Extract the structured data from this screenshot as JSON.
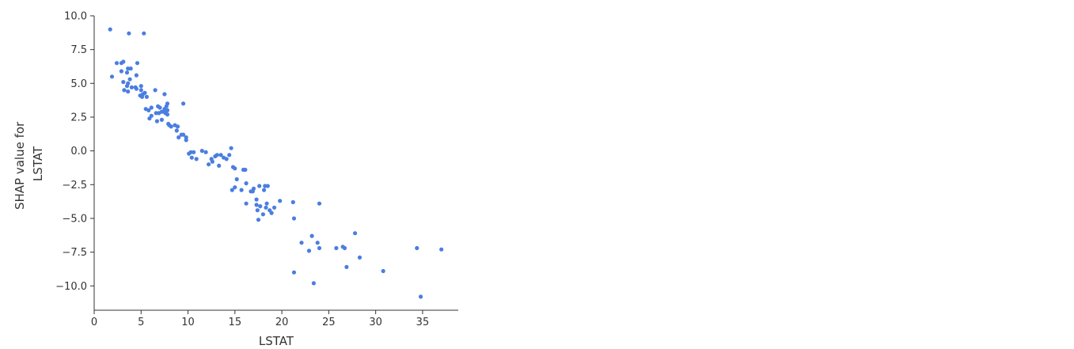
{
  "chart_data": {
    "type": "scatter",
    "title": "",
    "xlabel": "LSTAT",
    "ylabel": [
      "SHAP value for",
      "LSTAT"
    ],
    "xlim": [
      0,
      38.8
    ],
    "ylim": [
      -11.8,
      10.0
    ],
    "x_ticks": [
      0,
      5,
      10,
      15,
      20,
      25,
      30,
      35
    ],
    "x_tick_labels": [
      "0",
      "5",
      "10",
      "15",
      "20",
      "25",
      "30",
      "35"
    ],
    "y_ticks": [
      10.0,
      7.5,
      5.0,
      2.5,
      0.0,
      -2.5,
      -5.0,
      -7.5,
      -10.0
    ],
    "y_tick_labels": [
      "10.0",
      "7.5",
      "5.0",
      "2.5",
      "0.0",
      "−2.5",
      "−5.0",
      "−7.5",
      "−10.0"
    ],
    "grid": false,
    "legend": "none",
    "point_color": "#4a7ee0",
    "points": [
      [
        1.7,
        9.0
      ],
      [
        3.7,
        8.7
      ],
      [
        5.3,
        8.7
      ],
      [
        1.9,
        5.5
      ],
      [
        2.4,
        6.5
      ],
      [
        2.9,
        6.5
      ],
      [
        3.1,
        6.6
      ],
      [
        4.6,
        6.5
      ],
      [
        2.9,
        5.9
      ],
      [
        3.6,
        6.1
      ],
      [
        3.9,
        6.1
      ],
      [
        3.5,
        5.8
      ],
      [
        3.1,
        5.1
      ],
      [
        3.6,
        5.0
      ],
      [
        3.8,
        5.3
      ],
      [
        4.0,
        4.7
      ],
      [
        3.5,
        4.8
      ],
      [
        3.6,
        4.4
      ],
      [
        3.2,
        4.5
      ],
      [
        4.4,
        4.7
      ],
      [
        4.5,
        4.6
      ],
      [
        4.5,
        5.6
      ],
      [
        5.0,
        4.8
      ],
      [
        5.0,
        4.5
      ],
      [
        5.2,
        4.2
      ],
      [
        5.6,
        4.0
      ],
      [
        4.9,
        4.1
      ],
      [
        5.1,
        4.0
      ],
      [
        5.4,
        4.3
      ],
      [
        5.5,
        3.1
      ],
      [
        5.8,
        3.0
      ],
      [
        6.1,
        3.2
      ],
      [
        6.1,
        2.6
      ],
      [
        5.9,
        2.4
      ],
      [
        6.6,
        2.8
      ],
      [
        6.8,
        3.3
      ],
      [
        7.0,
        3.2
      ],
      [
        6.9,
        2.8
      ],
      [
        7.2,
        2.9
      ],
      [
        7.2,
        2.3
      ],
      [
        7.4,
        2.9
      ],
      [
        7.5,
        3.1
      ],
      [
        7.6,
        2.8
      ],
      [
        7.7,
        3.3
      ],
      [
        7.8,
        3.5
      ],
      [
        7.8,
        3.0
      ],
      [
        7.8,
        2.7
      ],
      [
        7.5,
        4.2
      ],
      [
        6.5,
        4.5
      ],
      [
        6.7,
        2.2
      ],
      [
        7.9,
        2.0
      ],
      [
        8.0,
        1.9
      ],
      [
        8.2,
        1.8
      ],
      [
        8.6,
        1.9
      ],
      [
        8.9,
        1.8
      ],
      [
        8.8,
        1.5
      ],
      [
        9.0,
        1.0
      ],
      [
        9.3,
        1.2
      ],
      [
        9.5,
        1.2
      ],
      [
        9.8,
        1.0
      ],
      [
        9.8,
        0.8
      ],
      [
        9.5,
        3.5
      ],
      [
        10.1,
        -0.2
      ],
      [
        10.3,
        -0.1
      ],
      [
        10.6,
        -0.1
      ],
      [
        10.4,
        -0.5
      ],
      [
        10.9,
        -0.6
      ],
      [
        11.5,
        -0.0
      ],
      [
        11.9,
        -0.1
      ],
      [
        12.2,
        -1.0
      ],
      [
        12.5,
        -0.6
      ],
      [
        12.6,
        -0.8
      ],
      [
        12.9,
        -0.4
      ],
      [
        13.1,
        -0.3
      ],
      [
        13.3,
        -1.1
      ],
      [
        13.5,
        -0.3
      ],
      [
        13.8,
        -0.5
      ],
      [
        14.1,
        -0.6
      ],
      [
        14.4,
        -0.3
      ],
      [
        14.6,
        0.2
      ],
      [
        14.8,
        -1.2
      ],
      [
        14.7,
        -2.9
      ],
      [
        15.0,
        -1.3
      ],
      [
        15.0,
        -2.7
      ],
      [
        15.2,
        -2.1
      ],
      [
        15.7,
        -2.9
      ],
      [
        15.9,
        -1.4
      ],
      [
        16.1,
        -1.4
      ],
      [
        16.2,
        -2.4
      ],
      [
        16.2,
        -3.9
      ],
      [
        16.7,
        -3.0
      ],
      [
        16.9,
        -3.0
      ],
      [
        17.0,
        -2.8
      ],
      [
        17.3,
        -3.6
      ],
      [
        17.3,
        -4.0
      ],
      [
        17.4,
        -4.4
      ],
      [
        17.5,
        -5.1
      ],
      [
        17.6,
        -2.6
      ],
      [
        17.7,
        -4.1
      ],
      [
        18.0,
        -4.7
      ],
      [
        18.1,
        -2.9
      ],
      [
        18.2,
        -2.6
      ],
      [
        18.4,
        -3.9
      ],
      [
        18.5,
        -2.6
      ],
      [
        18.3,
        -4.2
      ],
      [
        18.7,
        -4.4
      ],
      [
        18.9,
        -4.6
      ],
      [
        19.2,
        -4.2
      ],
      [
        19.8,
        -3.7
      ],
      [
        21.2,
        -3.8
      ],
      [
        21.3,
        -5.0
      ],
      [
        21.3,
        -9.0
      ],
      [
        22.1,
        -6.8
      ],
      [
        22.9,
        -7.4
      ],
      [
        23.2,
        -6.3
      ],
      [
        23.4,
        -9.8
      ],
      [
        23.8,
        -6.8
      ],
      [
        24.0,
        -7.2
      ],
      [
        24.0,
        -3.9
      ],
      [
        25.8,
        -7.2
      ],
      [
        26.5,
        -7.1
      ],
      [
        26.7,
        -7.2
      ],
      [
        26.9,
        -8.6
      ],
      [
        27.8,
        -6.1
      ],
      [
        28.3,
        -7.9
      ],
      [
        30.8,
        -8.9
      ],
      [
        34.4,
        -7.2
      ],
      [
        34.8,
        -10.8
      ],
      [
        37.0,
        -7.3
      ]
    ]
  }
}
